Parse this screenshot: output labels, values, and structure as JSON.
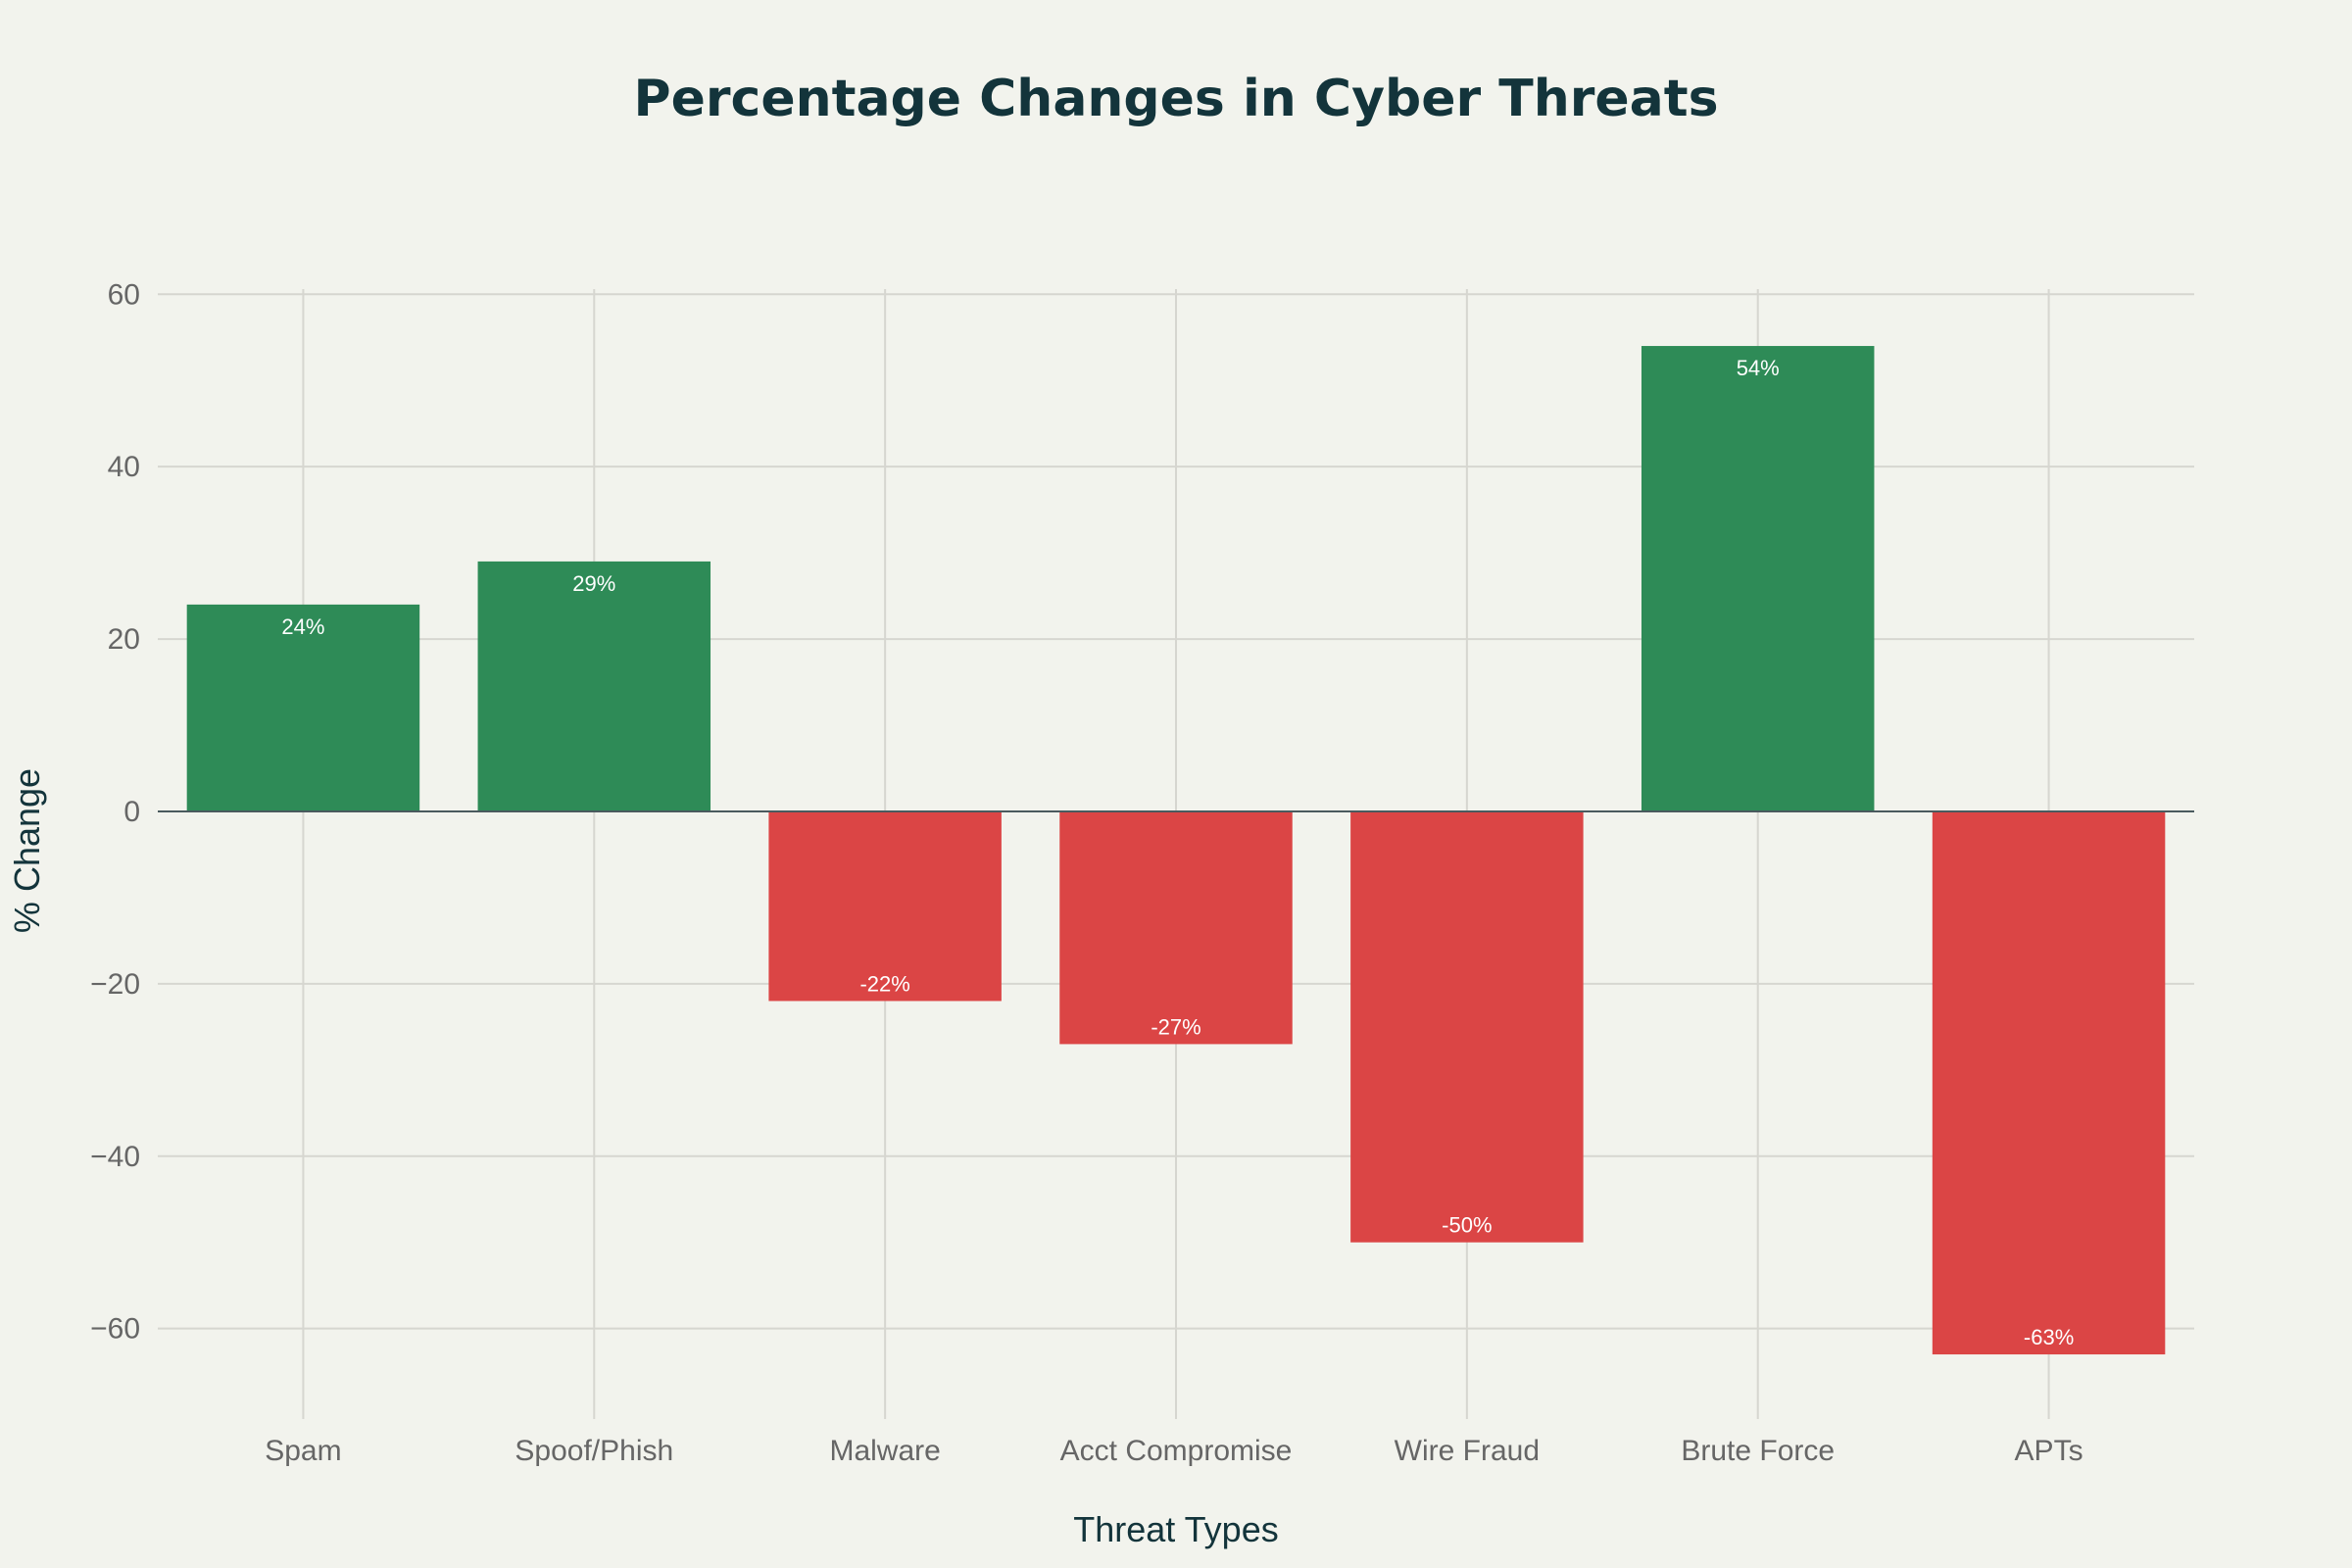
{
  "chart_data": {
    "type": "bar",
    "title": "Percentage Changes in Cyber Threats",
    "xlabel": "Threat Types",
    "ylabel": "% Change",
    "categories": [
      "Spam",
      "Spoof/Phish",
      "Malware",
      "Acct Compromise",
      "Wire Fraud",
      "Brute Force",
      "APTs"
    ],
    "values": [
      24,
      29,
      -22,
      -27,
      -50,
      54,
      -63
    ],
    "data_labels": [
      "24%",
      "29%",
      "-22%",
      "-27%",
      "-50%",
      "54%",
      "-63%"
    ],
    "ylim": [
      -70.5,
      60.6
    ],
    "yticks": [
      60,
      40,
      20,
      0,
      -20,
      -40,
      -60
    ],
    "ytick_labels": [
      "60",
      "40",
      "20",
      "0",
      "−20",
      "−40",
      "−60"
    ],
    "grid": true,
    "colors": {
      "positive": "#2e8b57",
      "negative": "#db4545",
      "background": "#f2f3ed",
      "grid": "#d6d6d0",
      "zero_line": "#4a5a5e"
    }
  }
}
